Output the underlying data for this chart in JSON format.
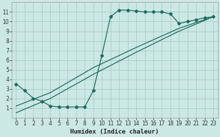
{
  "xlabel": "Humidex (Indice chaleur)",
  "bg_color": "#cce8e4",
  "grid_color": "#aad0cc",
  "line_color": "#1e6b5e",
  "xlim": [
    -0.5,
    23.5
  ],
  "ylim": [
    0,
    12
  ],
  "xticks": [
    0,
    1,
    2,
    3,
    4,
    5,
    6,
    7,
    8,
    9,
    10,
    11,
    12,
    13,
    14,
    15,
    16,
    17,
    18,
    19,
    20,
    21,
    22,
    23
  ],
  "yticks": [
    1,
    2,
    3,
    4,
    5,
    6,
    7,
    8,
    9,
    10,
    11
  ],
  "curve_x": [
    0,
    1,
    2,
    3,
    4,
    5,
    6,
    7,
    8,
    9,
    10,
    11,
    12,
    13,
    14,
    15,
    16,
    17,
    18,
    19,
    20,
    21,
    22,
    23
  ],
  "curve_y": [
    3.5,
    2.8,
    2.0,
    1.7,
    1.2,
    1.1,
    1.1,
    1.1,
    1.1,
    2.8,
    6.5,
    10.5,
    11.2,
    11.2,
    11.1,
    11.0,
    11.0,
    11.0,
    10.8,
    9.8,
    10.0,
    10.2,
    10.4,
    10.5
  ],
  "diag1_x": [
    0,
    4,
    9,
    14,
    19,
    23
  ],
  "diag1_y": [
    0.5,
    2.0,
    4.5,
    6.8,
    9.0,
    10.5
  ],
  "diag2_x": [
    0,
    4,
    9,
    14,
    19,
    23
  ],
  "diag2_y": [
    1.2,
    2.6,
    5.2,
    7.3,
    9.3,
    10.5
  ],
  "xlabel_fontsize": 6.5,
  "tick_fontsize": 5.5
}
